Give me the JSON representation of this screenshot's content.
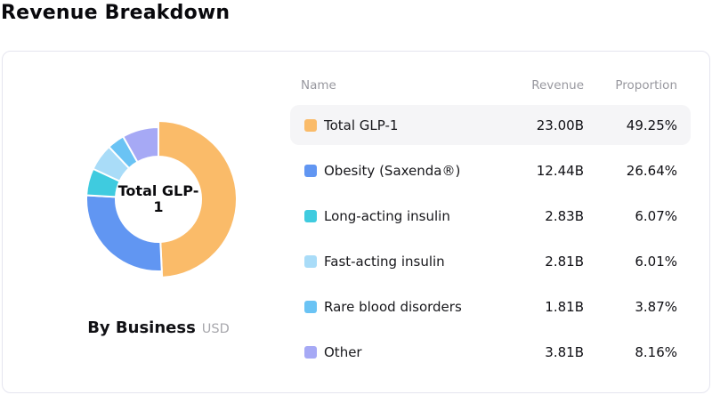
{
  "page": {
    "title": "Revenue Breakdown"
  },
  "card": {
    "center_label": "Total GLP-1",
    "caption": {
      "label": "By Business",
      "unit": "USD"
    },
    "table": {
      "headers": {
        "name": "Name",
        "revenue": "Revenue",
        "proportion": "Proportion"
      },
      "rows": [
        {
          "name": "Total GLP-1",
          "revenue": "23.00B",
          "proportion": "49.25%",
          "color": "#FABB69",
          "selected": true
        },
        {
          "name": "Obesity (Saxenda®)",
          "revenue": "12.44B",
          "proportion": "26.64%",
          "color": "#6196F2",
          "selected": false
        },
        {
          "name": "Long-acting insulin",
          "revenue": "2.83B",
          "proportion": "6.07%",
          "color": "#3FCBDF",
          "selected": false
        },
        {
          "name": "Fast-acting insulin",
          "revenue": "2.81B",
          "proportion": "6.01%",
          "color": "#A9DCF8",
          "selected": false
        },
        {
          "name": "Rare blood disorders",
          "revenue": "1.81B",
          "proportion": "3.87%",
          "color": "#6AC3F4",
          "selected": false
        },
        {
          "name": "Other",
          "revenue": "3.81B",
          "proportion": "8.16%",
          "color": "#A6A9F5",
          "selected": false
        }
      ]
    }
  },
  "chart_data": {
    "type": "pie",
    "donut": true,
    "title": "Revenue Breakdown",
    "group_label": "By Business",
    "unit": "USD",
    "categories": [
      "Total GLP-1",
      "Obesity (Saxenda®)",
      "Long-acting insulin",
      "Fast-acting insulin",
      "Rare blood disorders",
      "Other"
    ],
    "values": [
      23.0,
      12.44,
      2.83,
      2.81,
      1.81,
      3.81
    ],
    "value_labels": [
      "23.00B",
      "12.44B",
      "2.83B",
      "2.81B",
      "1.81B",
      "3.81B"
    ],
    "proportions_pct": [
      49.25,
      26.64,
      6.07,
      6.01,
      3.87,
      8.16
    ],
    "colors": [
      "#FABB69",
      "#6196F2",
      "#3FCBDF",
      "#A9DCF8",
      "#6AC3F4",
      "#A6A9F5"
    ],
    "selected": "Total GLP-1",
    "center_label": "Total GLP-1",
    "start_angle_deg": 0,
    "direction": "clockwise",
    "legend_position": "right-table"
  }
}
